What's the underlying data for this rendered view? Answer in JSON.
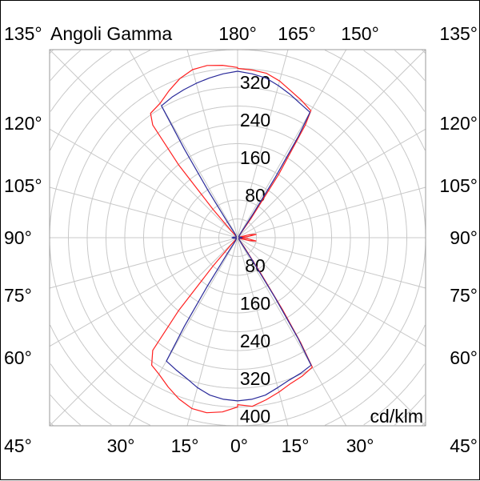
{
  "chart_data": {
    "type": "polar",
    "title": "Angoli Gamma",
    "unit_label": "cd/klm",
    "radial_range": [
      0,
      400
    ],
    "radial_ticks": [
      80,
      160,
      240,
      320,
      400
    ],
    "radial_tick_labels_upper": [
      "80",
      "160",
      "240",
      "320"
    ],
    "radial_tick_labels_lower": [
      "80",
      "160",
      "240",
      "320",
      "400"
    ],
    "angle_step_deg": 15,
    "grid": true,
    "angle_labels": {
      "top": [
        "135°",
        "180°",
        "165°",
        "150°",
        "135°"
      ],
      "left": [
        "120°",
        "105°",
        "90°",
        "75°",
        "60°"
      ],
      "right": [
        "120°",
        "105°",
        "90°",
        "75°",
        "60°"
      ],
      "bottom": [
        "45°",
        "30°",
        "15°",
        "0°",
        "15°",
        "30°",
        "45°"
      ]
    },
    "series": [
      {
        "color": "#ff2020",
        "right": [
          [
            0,
            355
          ],
          [
            5,
            360
          ],
          [
            10,
            350
          ],
          [
            15,
            340
          ],
          [
            20,
            330
          ],
          [
            25,
            325
          ],
          [
            30,
            318
          ],
          [
            31,
            260
          ],
          [
            32,
            180
          ],
          [
            33,
            90
          ],
          [
            35,
            25
          ],
          [
            38,
            6
          ],
          [
            50,
            3
          ],
          [
            72,
            5
          ],
          [
            76,
            25
          ],
          [
            80,
            40
          ],
          [
            84,
            22
          ],
          [
            88,
            5
          ],
          [
            92,
            5
          ],
          [
            96,
            22
          ],
          [
            100,
            40
          ],
          [
            104,
            25
          ],
          [
            108,
            5
          ],
          [
            130,
            3
          ],
          [
            143,
            8
          ],
          [
            145,
            50
          ],
          [
            147,
            160
          ],
          [
            149,
            280
          ],
          [
            150,
            312
          ],
          [
            155,
            322
          ],
          [
            160,
            332
          ],
          [
            165,
            345
          ],
          [
            170,
            355
          ],
          [
            175,
            358
          ],
          [
            180,
            360
          ]
        ],
        "left": [
          [
            0,
            360
          ],
          [
            5,
            372
          ],
          [
            10,
            378
          ],
          [
            15,
            376
          ],
          [
            20,
            365
          ],
          [
            25,
            350
          ],
          [
            30,
            335
          ],
          [
            34,
            327
          ],
          [
            37,
            300
          ],
          [
            39,
            200
          ],
          [
            41,
            80
          ],
          [
            43,
            20
          ],
          [
            46,
            5
          ],
          [
            90,
            3
          ],
          [
            134,
            5
          ],
          [
            137,
            20
          ],
          [
            139,
            80
          ],
          [
            141,
            200
          ],
          [
            143,
            300
          ],
          [
            145,
            323
          ],
          [
            150,
            330
          ],
          [
            155,
            345
          ],
          [
            160,
            360
          ],
          [
            165,
            370
          ],
          [
            170,
            372
          ],
          [
            175,
            368
          ],
          [
            180,
            362
          ]
        ]
      },
      {
        "color": "#2a2a9a",
        "right": [
          [
            0,
            347
          ],
          [
            5,
            345
          ],
          [
            10,
            340
          ],
          [
            15,
            330
          ],
          [
            20,
            322
          ],
          [
            25,
            318
          ],
          [
            30,
            313
          ],
          [
            31,
            250
          ],
          [
            32,
            150
          ],
          [
            33,
            60
          ],
          [
            35,
            12
          ],
          [
            40,
            5
          ],
          [
            60,
            3
          ],
          [
            85,
            8
          ],
          [
            90,
            10
          ],
          [
            95,
            8
          ],
          [
            120,
            3
          ],
          [
            140,
            5
          ],
          [
            145,
            12
          ],
          [
            147,
            60
          ],
          [
            148,
            150
          ],
          [
            149,
            250
          ],
          [
            150,
            308
          ],
          [
            155,
            315
          ],
          [
            160,
            325
          ],
          [
            165,
            335
          ],
          [
            170,
            345
          ],
          [
            175,
            350
          ],
          [
            180,
            354
          ]
        ],
        "left": [
          [
            0,
            347
          ],
          [
            5,
            345
          ],
          [
            10,
            340
          ],
          [
            15,
            330
          ],
          [
            20,
            318
          ],
          [
            25,
            310
          ],
          [
            30,
            303
          ],
          [
            31,
            220
          ],
          [
            32,
            120
          ],
          [
            33,
            40
          ],
          [
            35,
            8
          ],
          [
            60,
            3
          ],
          [
            85,
            10
          ],
          [
            90,
            12
          ],
          [
            95,
            10
          ],
          [
            120,
            3
          ],
          [
            145,
            8
          ],
          [
            147,
            40
          ],
          [
            148,
            120
          ],
          [
            149,
            220
          ],
          [
            150,
            324
          ],
          [
            155,
            330
          ],
          [
            160,
            335
          ],
          [
            165,
            340
          ],
          [
            170,
            345
          ],
          [
            175,
            350
          ],
          [
            180,
            354
          ]
        ]
      }
    ]
  }
}
